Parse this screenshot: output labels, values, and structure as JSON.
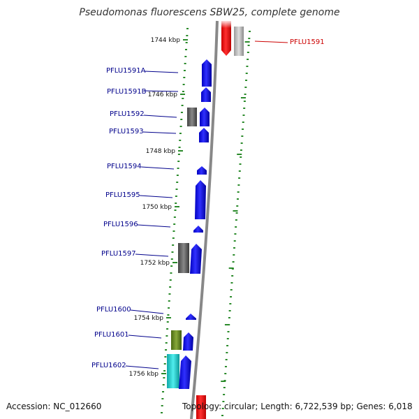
{
  "title": "Pseudomonas fluorescens SBW25, complete genome",
  "footer": {
    "accession": "Accession: NC_012660",
    "summary": "Topology: circular; Length: 6,722,539 bp; Genes: 6,018"
  },
  "colors": {
    "genome_line": "#888888",
    "gene_forward": "#1010e0",
    "gene_highlight": "#ee1111",
    "gene_other": "#666666",
    "gene_olive": "#668822",
    "gene_cyan": "#22cccc",
    "tick": "#2a8a2a",
    "label": "#00008b",
    "label_highlight": "#cc0000"
  },
  "kbp_ticks": [
    "1744 kbp",
    "1746 kbp",
    "1748 kbp",
    "1750 kbp",
    "1752 kbp",
    "1754 kbp",
    "1756 kbp"
  ],
  "gene_labels": [
    {
      "text": "PFLU1591",
      "highlight": true
    },
    {
      "text": "PFLU1591A",
      "highlight": false
    },
    {
      "text": "PFLU1591B",
      "highlight": false
    },
    {
      "text": "PFLU1592",
      "highlight": false
    },
    {
      "text": "PFLU1593",
      "highlight": false
    },
    {
      "text": "PFLU1594",
      "highlight": false
    },
    {
      "text": "PFLU1595",
      "highlight": false
    },
    {
      "text": "PFLU1596",
      "highlight": false
    },
    {
      "text": "PFLU1597",
      "highlight": false
    },
    {
      "text": "PFLU1600",
      "highlight": false
    },
    {
      "text": "PFLU1601",
      "highlight": false
    },
    {
      "text": "PFLU1602",
      "highlight": false
    }
  ]
}
